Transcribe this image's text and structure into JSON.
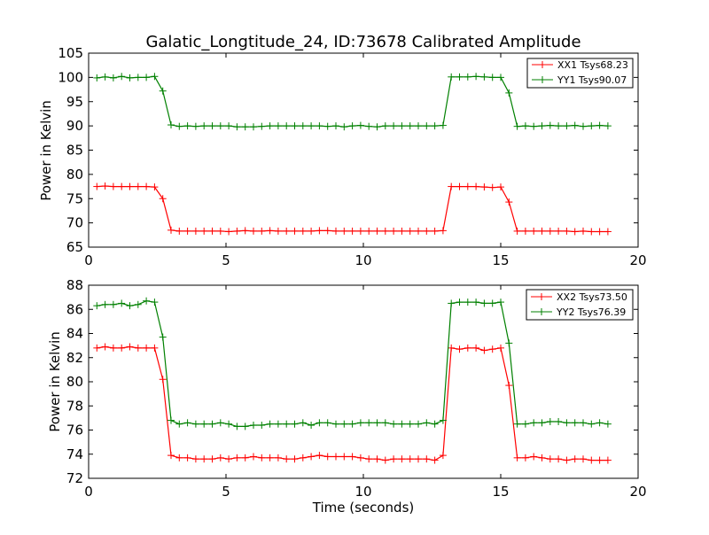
{
  "chart_data": [
    {
      "type": "line",
      "title": "Galatic_Longtitude_24, ID:73678 Calibrated Amplitude",
      "xlabel": "",
      "ylabel": "Power in Kelvin",
      "xlim": [
        0,
        20
      ],
      "ylim": [
        65,
        105
      ],
      "xticks": [
        "0",
        "5",
        "10",
        "15",
        "20"
      ],
      "yticks": [
        "65",
        "70",
        "75",
        "80",
        "85",
        "90",
        "95",
        "100",
        "105"
      ],
      "legend": "top-right",
      "grid": false,
      "x": [
        0.3,
        0.6,
        0.9,
        1.2,
        1.5,
        1.8,
        2.1,
        2.4,
        2.7,
        3.0,
        3.3,
        3.6,
        3.9,
        4.2,
        4.5,
        4.8,
        5.1,
        5.4,
        5.7,
        6.0,
        6.3,
        6.6,
        6.9,
        7.2,
        7.5,
        7.8,
        8.1,
        8.4,
        8.7,
        9.0,
        9.3,
        9.6,
        9.9,
        10.2,
        10.5,
        10.8,
        11.1,
        11.4,
        11.7,
        12.0,
        12.3,
        12.6,
        12.9,
        13.2,
        13.5,
        13.8,
        14.1,
        14.4,
        14.7,
        15.0,
        15.3,
        15.6,
        15.9,
        16.2,
        16.5,
        16.8,
        17.1,
        17.4,
        17.7,
        18.0,
        18.3,
        18.6,
        18.9
      ],
      "series": [
        {
          "name": "XX1 Tsys68.23",
          "color": "#ff0000",
          "values": [
            77.5,
            77.6,
            77.5,
            77.5,
            77.5,
            77.5,
            77.5,
            77.4,
            75.0,
            68.5,
            68.3,
            68.3,
            68.3,
            68.3,
            68.3,
            68.3,
            68.2,
            68.3,
            68.4,
            68.3,
            68.3,
            68.4,
            68.3,
            68.3,
            68.3,
            68.3,
            68.3,
            68.4,
            68.4,
            68.3,
            68.3,
            68.3,
            68.3,
            68.3,
            68.3,
            68.3,
            68.3,
            68.3,
            68.3,
            68.3,
            68.3,
            68.3,
            68.4,
            77.5,
            77.5,
            77.5,
            77.5,
            77.4,
            77.3,
            77.4,
            74.3,
            68.3,
            68.3,
            68.3,
            68.3,
            68.3,
            68.3,
            68.3,
            68.2,
            68.3,
            68.2,
            68.2,
            68.2
          ]
        },
        {
          "name": "YY1 Tsys90.07",
          "color": "#008000",
          "values": [
            99.9,
            100.1,
            99.9,
            100.2,
            99.9,
            100.0,
            100.0,
            100.2,
            97.2,
            90.2,
            89.9,
            90.0,
            89.9,
            90.0,
            90.0,
            90.0,
            90.0,
            89.8,
            89.8,
            89.8,
            89.9,
            90.0,
            90.0,
            90.0,
            90.0,
            90.0,
            90.0,
            90.0,
            89.9,
            90.0,
            89.8,
            90.0,
            90.1,
            89.9,
            89.8,
            90.0,
            90.0,
            90.0,
            90.0,
            90.0,
            90.0,
            90.0,
            90.1,
            100.1,
            100.1,
            100.1,
            100.2,
            100.1,
            100.0,
            100.0,
            96.8,
            89.9,
            90.0,
            89.9,
            90.0,
            90.1,
            90.0,
            90.0,
            90.1,
            89.9,
            90.0,
            90.1,
            90.0
          ]
        }
      ]
    },
    {
      "type": "line",
      "title": "",
      "xlabel": "Time (seconds)",
      "ylabel": "Power in Kelvin",
      "xlim": [
        0,
        20
      ],
      "ylim": [
        72,
        88
      ],
      "xticks": [
        "0",
        "5",
        "10",
        "15",
        "20"
      ],
      "yticks": [
        "72",
        "74",
        "76",
        "78",
        "80",
        "82",
        "84",
        "86",
        "88"
      ],
      "legend": "top-right",
      "grid": false,
      "x": [
        0.3,
        0.6,
        0.9,
        1.2,
        1.5,
        1.8,
        2.1,
        2.4,
        2.7,
        3.0,
        3.3,
        3.6,
        3.9,
        4.2,
        4.5,
        4.8,
        5.1,
        5.4,
        5.7,
        6.0,
        6.3,
        6.6,
        6.9,
        7.2,
        7.5,
        7.8,
        8.1,
        8.4,
        8.7,
        9.0,
        9.3,
        9.6,
        9.9,
        10.2,
        10.5,
        10.8,
        11.1,
        11.4,
        11.7,
        12.0,
        12.3,
        12.6,
        12.9,
        13.2,
        13.5,
        13.8,
        14.1,
        14.4,
        14.7,
        15.0,
        15.3,
        15.6,
        15.9,
        16.2,
        16.5,
        16.8,
        17.1,
        17.4,
        17.7,
        18.0,
        18.3,
        18.6,
        18.9
      ],
      "series": [
        {
          "name": "XX2 Tsys73.50",
          "color": "#ff0000",
          "values": [
            82.8,
            82.9,
            82.8,
            82.8,
            82.9,
            82.8,
            82.8,
            82.8,
            80.2,
            73.9,
            73.7,
            73.7,
            73.6,
            73.6,
            73.6,
            73.7,
            73.6,
            73.7,
            73.7,
            73.8,
            73.7,
            73.7,
            73.7,
            73.6,
            73.6,
            73.7,
            73.8,
            73.9,
            73.8,
            73.8,
            73.8,
            73.8,
            73.7,
            73.6,
            73.6,
            73.5,
            73.6,
            73.6,
            73.6,
            73.6,
            73.6,
            73.5,
            73.9,
            82.8,
            82.7,
            82.8,
            82.8,
            82.6,
            82.7,
            82.8,
            79.7,
            73.7,
            73.7,
            73.8,
            73.7,
            73.6,
            73.6,
            73.5,
            73.6,
            73.6,
            73.5,
            73.5,
            73.5
          ]
        },
        {
          "name": "YY2 Tsys76.39",
          "color": "#008000",
          "values": [
            86.3,
            86.4,
            86.4,
            86.5,
            86.3,
            86.4,
            86.7,
            86.6,
            83.7,
            76.8,
            76.5,
            76.6,
            76.5,
            76.5,
            76.5,
            76.6,
            76.5,
            76.3,
            76.3,
            76.4,
            76.4,
            76.5,
            76.5,
            76.5,
            76.5,
            76.6,
            76.4,
            76.6,
            76.6,
            76.5,
            76.5,
            76.5,
            76.6,
            76.6,
            76.6,
            76.6,
            76.5,
            76.5,
            76.5,
            76.5,
            76.6,
            76.5,
            76.8,
            86.5,
            86.6,
            86.6,
            86.6,
            86.5,
            86.5,
            86.6,
            83.2,
            76.5,
            76.5,
            76.6,
            76.6,
            76.7,
            76.7,
            76.6,
            76.6,
            76.6,
            76.5,
            76.6,
            76.5
          ]
        }
      ]
    }
  ]
}
